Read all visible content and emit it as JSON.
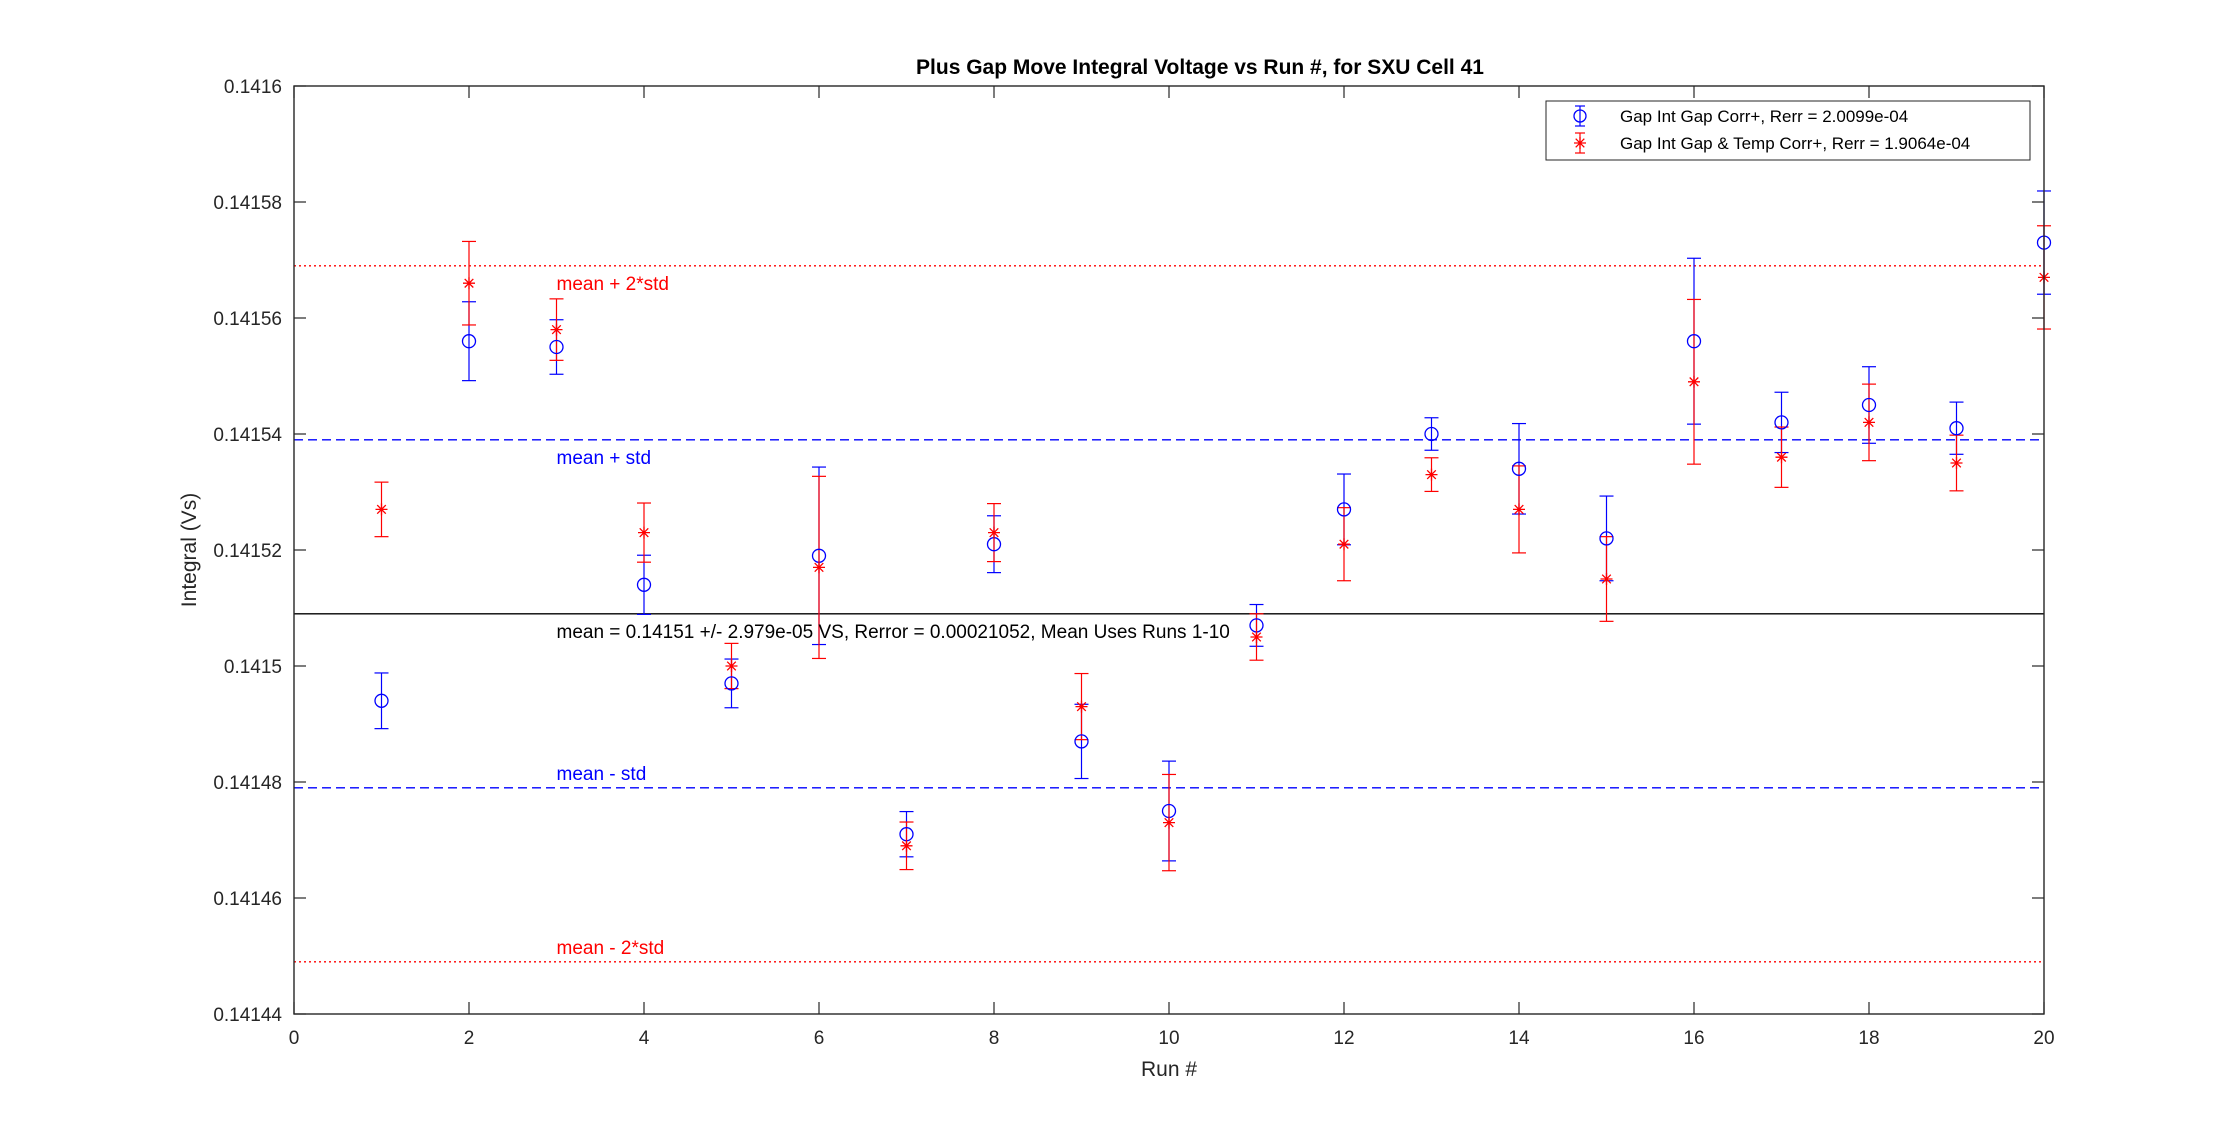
{
  "chart_data": {
    "type": "scatter",
    "title": "Plus Gap Move Integral Voltage vs Run #, for SXU Cell 41",
    "xlabel": "Run #",
    "ylabel": "Integral (Vs)",
    "xlim": [
      0,
      20
    ],
    "ylim": [
      0.14144,
      0.1416
    ],
    "x_ticks": [
      0,
      2,
      4,
      6,
      8,
      10,
      12,
      14,
      16,
      18,
      20
    ],
    "y_ticks": [
      0.14144,
      0.14146,
      0.14148,
      0.1415,
      0.14152,
      0.14154,
      0.14156,
      0.14158,
      0.1416
    ],
    "y_tick_labels": [
      "0.14144",
      "0.14146",
      "0.14148",
      "0.1415",
      "0.14152",
      "0.14154",
      "0.14156",
      "0.14158",
      "0.1416"
    ],
    "grid": false,
    "legend_position": "top-right",
    "series": [
      {
        "name": "Gap Int Gap Corr+, Rerr = 2.0099e-04",
        "color": "#0000ff",
        "marker": "circle",
        "x": [
          1,
          2,
          3,
          4,
          5,
          6,
          7,
          8,
          9,
          10,
          11,
          12,
          13,
          14,
          15,
          16,
          17,
          18,
          19,
          20
        ],
        "y": [
          0.141494,
          0.141556,
          0.141555,
          0.141514,
          0.141497,
          0.141519,
          0.141471,
          0.141521,
          0.141487,
          0.141475,
          0.141507,
          0.141527,
          0.14154,
          0.141534,
          0.141522,
          0.141556,
          0.141542,
          0.141545,
          0.141541,
          0.141573
        ],
        "err": [
          4.8e-06,
          6.8e-06,
          4.7e-06,
          5.1e-06,
          4.2e-06,
          1.53e-05,
          3.9e-06,
          4.9e-06,
          6.4e-06,
          8.6e-06,
          3.6e-06,
          6.1e-06,
          2.8e-06,
          7.8e-06,
          7.3e-06,
          1.43e-05,
          5.2e-06,
          6.6e-06,
          4.5e-06,
          8.9e-06
        ]
      },
      {
        "name": "Gap Int Gap & Temp  Corr+, Rerr = 1.9064e-04",
        "color": "#ff0000",
        "marker": "asterisk",
        "x": [
          1,
          2,
          3,
          4,
          5,
          6,
          7,
          8,
          9,
          10,
          11,
          12,
          13,
          14,
          15,
          16,
          17,
          18,
          19,
          20
        ],
        "y": [
          0.141527,
          0.141566,
          0.141558,
          0.141523,
          0.1415,
          0.141517,
          0.141469,
          0.141523,
          0.141493,
          0.141473,
          0.141505,
          0.141521,
          0.141533,
          0.141527,
          0.141515,
          0.141549,
          0.141536,
          0.141542,
          0.141535,
          0.141567
        ],
        "err": [
          4.7e-06,
          7.2e-06,
          5.3e-06,
          5.1e-06,
          3.9e-06,
          1.57e-05,
          4.1e-06,
          5e-06,
          5.7e-06,
          8.3e-06,
          4e-06,
          6.3e-06,
          2.9e-06,
          7.5e-06,
          7.3e-06,
          1.42e-05,
          5.2e-06,
          6.6e-06,
          4.8e-06,
          8.9e-06
        ]
      }
    ],
    "reference_lines": [
      {
        "label": "mean + 2*std",
        "y": 0.141569,
        "color": "#ff0000",
        "style": "dotted",
        "label_x": 3,
        "label_offset": "below"
      },
      {
        "label": "mean + std",
        "y": 0.141539,
        "color": "#0000ff",
        "style": "dashed",
        "label_x": 3,
        "label_offset": "below"
      },
      {
        "label": "mean = 0.14151 +/- 2.979e-05 VS, Rerror = 0.00021052, Mean Uses Runs 1-10",
        "y": 0.141509,
        "color": "#000000",
        "style": "solid",
        "label_x": 3,
        "label_offset": "below"
      },
      {
        "label": "mean - std",
        "y": 0.141479,
        "color": "#0000ff",
        "style": "dashed",
        "label_x": 3,
        "label_offset": "above"
      },
      {
        "label": "mean - 2*std",
        "y": 0.141449,
        "color": "#ff0000",
        "style": "dotted",
        "label_x": 3,
        "label_offset": "above"
      }
    ]
  }
}
